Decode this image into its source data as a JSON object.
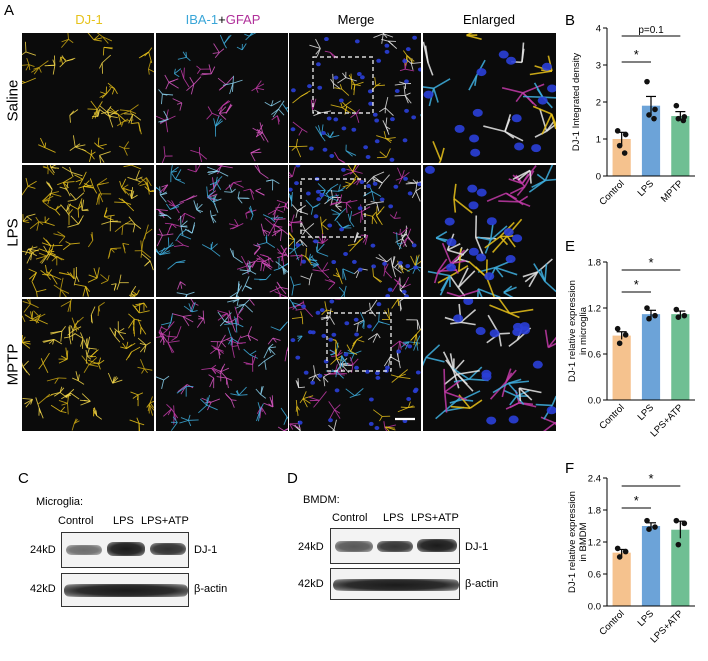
{
  "panel_labels": {
    "A": "A",
    "B": "B",
    "C": "C",
    "D": "D",
    "E": "E",
    "F": "F"
  },
  "panelA": {
    "col_headers": {
      "dj1": "DJ-1",
      "iba1": "IBA-1",
      "plus": "+",
      "gfap": "GFAP",
      "merge": "Merge",
      "enlarged": "Enlarged"
    },
    "rows": [
      "Saline",
      "LPS",
      "MPTP"
    ]
  },
  "panelC": {
    "cell_type": "Microglia:",
    "lanes": [
      "Control",
      "LPS",
      "LPS+ATP"
    ],
    "rows": [
      {
        "mw": "24kD",
        "protein": "DJ-1"
      },
      {
        "mw": "42kD",
        "protein": "β-actin"
      }
    ],
    "dj1_intensity": [
      0.6,
      1.0,
      0.9
    ]
  },
  "panelD": {
    "cell_type": "BMDM:",
    "lanes": [
      "Control",
      "LPS",
      "LPS+ATP"
    ],
    "rows": [
      {
        "mw": "24kD",
        "protein": "DJ-1"
      },
      {
        "mw": "42kD",
        "protein": "β-actin"
      }
    ],
    "dj1_intensity": [
      0.75,
      0.9,
      1.0
    ]
  },
  "chart_data": [
    {
      "id": "B",
      "type": "bar",
      "categories": [
        "Control",
        "LPS",
        "MPTP"
      ],
      "values": [
        1.0,
        1.9,
        1.62
      ],
      "errors": [
        0.18,
        0.25,
        0.12
      ],
      "points": [
        [
          1.22,
          1.12,
          0.82,
          0.62
        ],
        [
          2.55,
          1.8,
          1.65,
          1.55
        ],
        [
          1.9,
          1.6,
          1.55,
          1.5
        ]
      ],
      "colors": [
        "#f5c28e",
        "#6ca3d8",
        "#6fbf93"
      ],
      "ylabel": "DJ-1 Integrated density",
      "ylim": [
        0,
        4
      ],
      "yticks": [
        0,
        1,
        2,
        3,
        4
      ],
      "annotations": [
        {
          "from": 0,
          "to": 1,
          "text": "*"
        },
        {
          "from": 0,
          "to": 2,
          "text": "p=0.1"
        }
      ]
    },
    {
      "id": "E",
      "type": "bar",
      "categories": [
        "Control",
        "LPS",
        "LPS+ATP"
      ],
      "values": [
        0.84,
        1.12,
        1.12
      ],
      "errors": [
        0.05,
        0.05,
        0.04
      ],
      "points": [
        [
          0.93,
          0.85,
          0.74
        ],
        [
          1.2,
          1.1,
          1.06
        ],
        [
          1.18,
          1.1,
          1.08
        ]
      ],
      "colors": [
        "#f5c28e",
        "#6ca3d8",
        "#6fbf93"
      ],
      "ylabel": "DJ-1 relative expression\nin microglia",
      "ylim": [
        0,
        1.8
      ],
      "yticks": [
        0.0,
        0.6,
        1.2,
        1.8
      ],
      "annotations": [
        {
          "from": 0,
          "to": 1,
          "text": "*"
        },
        {
          "from": 0,
          "to": 2,
          "text": "*"
        }
      ]
    },
    {
      "id": "F",
      "type": "bar",
      "categories": [
        "Control",
        "LPS",
        "LPS+ATP"
      ],
      "values": [
        1.0,
        1.5,
        1.43
      ],
      "errors": [
        0.06,
        0.06,
        0.16
      ],
      "points": [
        [
          1.08,
          1.02,
          0.92
        ],
        [
          1.6,
          1.48,
          1.44
        ],
        [
          1.6,
          1.55,
          1.15
        ]
      ],
      "colors": [
        "#f5c28e",
        "#6ca3d8",
        "#6fbf93"
      ],
      "ylabel": "DJ-1 relative expression\nin BMDM",
      "ylim": [
        0,
        2.4
      ],
      "yticks": [
        0.0,
        0.6,
        1.2,
        1.8,
        2.4
      ],
      "annotations": [
        {
          "from": 0,
          "to": 1,
          "text": "*"
        },
        {
          "from": 0,
          "to": 2,
          "text": "*"
        }
      ]
    }
  ]
}
